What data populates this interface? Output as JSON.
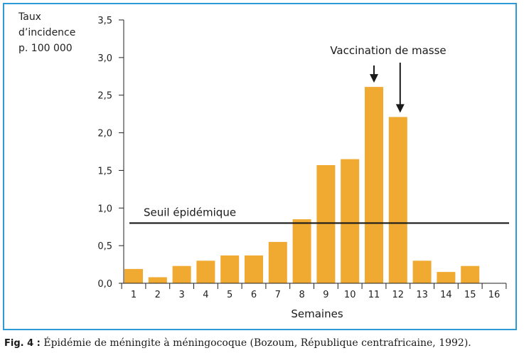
{
  "chart_data": {
    "type": "bar",
    "ylabel_lines": [
      "Taux",
      "d’incidence",
      "p. 100 000"
    ],
    "xlabel": "Semaines",
    "categories": [
      "1",
      "2",
      "3",
      "4",
      "5",
      "6",
      "7",
      "8",
      "9",
      "10",
      "11",
      "12",
      "13",
      "14",
      "15",
      "16"
    ],
    "values": [
      0.19,
      0.08,
      0.23,
      0.3,
      0.37,
      0.37,
      0.55,
      0.85,
      1.57,
      1.65,
      2.61,
      2.21,
      0.3,
      0.15,
      0.23,
      0.0
    ],
    "ylim": [
      0,
      3.5
    ],
    "yticks": [
      0,
      0.5,
      1.0,
      1.5,
      2.0,
      2.5,
      3.0,
      3.5
    ],
    "ytick_labels": [
      "0,0",
      "0,5",
      "1,0",
      "1,5",
      "2,0",
      "2,5",
      "3,0",
      "3,5"
    ],
    "bar_color": "#f0aa31",
    "threshold": {
      "label": "Seuil épidémique",
      "value": 0.8
    },
    "annotation": {
      "label": "Vaccination de masse",
      "weeks": [
        "11",
        "12"
      ]
    },
    "grid": false
  },
  "caption": {
    "fig_label": "Fig. 4 :",
    "text": "Épidémie de méningite à méningocoque (Bozoum, République centrafricaine, 1992)."
  }
}
